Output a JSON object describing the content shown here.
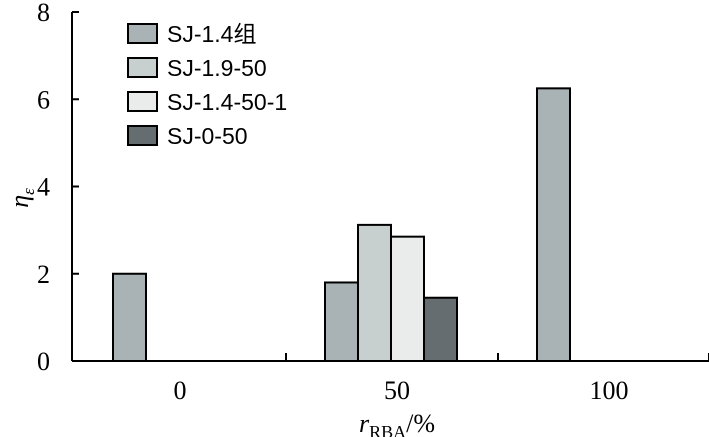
{
  "chart_data": {
    "type": "bar",
    "categories": [
      "0",
      "50",
      "100"
    ],
    "series": [
      {
        "name": "SJ-1.4组",
        "values": [
          2.0,
          1.8,
          6.25
        ],
        "color": "#a9b2b4"
      },
      {
        "name": "SJ-1.9-50",
        "values": [
          null,
          3.12,
          null
        ],
        "color": "#c7d0cf"
      },
      {
        "name": "SJ-1.4-50-1",
        "values": [
          null,
          2.85,
          null
        ],
        "color": "#e9ecea"
      },
      {
        "name": "SJ-0-50",
        "values": [
          null,
          1.45,
          null
        ],
        "color": "#656d70"
      }
    ],
    "ylim": [
      0,
      8
    ],
    "yticks": [
      0,
      2,
      4,
      6,
      8
    ],
    "xlabel": {
      "main": "r",
      "sub": "RBA",
      "suffix": "/%"
    },
    "ylabel": {
      "main": "η",
      "sub": "ε"
    },
    "legend_position": "top-left",
    "grid": false
  }
}
